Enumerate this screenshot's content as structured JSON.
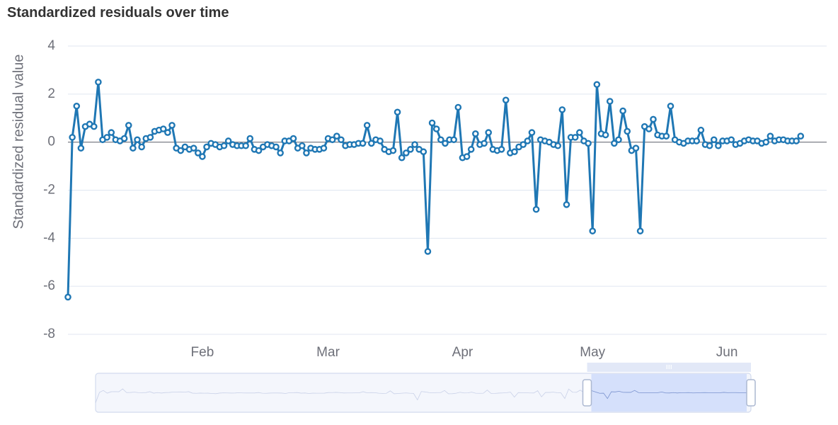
{
  "chart_data": {
    "type": "line",
    "title": "Standardized residuals over time",
    "ylabel": "Standardized residual value",
    "xlabel": "",
    "ylim": [
      -8,
      4
    ],
    "yticks": [
      4,
      2,
      0,
      -2,
      -4,
      -6,
      -8
    ],
    "x_tick_labels": [
      "Feb",
      "Mar",
      "Apr",
      "May",
      "Jun"
    ],
    "x_tick_dates": [
      "2016-02-01",
      "2016-03-01",
      "2016-04-01",
      "2016-05-01",
      "2016-06-01"
    ],
    "x_range": [
      "2016-01-01",
      "2016-06-24"
    ],
    "grid": true,
    "legend": "none",
    "series_color": "#1f77b4",
    "zero_line": true,
    "data_zoom": {
      "range_percent": [
        75,
        100
      ]
    },
    "series": [
      {
        "values": [
          -6.45,
          0.2,
          1.5,
          -0.25,
          0.65,
          0.75,
          0.65,
          2.5,
          0.1,
          0.2,
          0.4,
          0.1,
          0.05,
          0.15,
          0.7,
          -0.25,
          0.1,
          -0.2,
          0.15,
          0.2,
          0.45,
          0.5,
          0.55,
          0.4,
          0.7,
          -0.25,
          -0.35,
          -0.2,
          -0.3,
          -0.25,
          -0.45,
          -0.6,
          -0.2,
          -0.05,
          -0.1,
          -0.2,
          -0.15,
          0.05,
          -0.1,
          -0.15,
          -0.15,
          -0.15,
          0.15,
          -0.3,
          -0.35,
          -0.2,
          -0.1,
          -0.15,
          -0.2,
          -0.45,
          0.05,
          0.05,
          0.15,
          -0.25,
          -0.15,
          -0.45,
          -0.25,
          -0.3,
          -0.3,
          -0.25,
          0.15,
          0.1,
          0.25,
          0.1,
          -0.15,
          -0.1,
          -0.1,
          -0.05,
          -0.05,
          0.7,
          -0.05,
          0.1,
          0.05,
          -0.3,
          -0.4,
          -0.35,
          1.25,
          -0.65,
          -0.45,
          -0.3,
          -0.1,
          -0.3,
          -0.4,
          -4.55,
          0.8,
          0.55,
          0.1,
          -0.05,
          0.1,
          0.1,
          1.45,
          -0.65,
          -0.6,
          -0.3,
          0.35,
          -0.1,
          -0.05,
          0.4,
          -0.3,
          -0.35,
          -0.3,
          1.75,
          -0.45,
          -0.4,
          -0.2,
          -0.1,
          0.05,
          0.4,
          -2.8,
          0.1,
          0.05,
          0.0,
          -0.1,
          -0.15,
          1.35,
          -2.6,
          0.2,
          0.2,
          0.4,
          0.05,
          -0.05,
          -3.7,
          2.4,
          0.35,
          0.3,
          1.7,
          -0.05,
          0.1,
          1.3,
          0.45,
          -0.35,
          -0.25,
          -3.7,
          0.65,
          0.55,
          0.95,
          0.3,
          0.25,
          0.25,
          1.5,
          0.1,
          0.0,
          -0.05,
          0.05,
          0.05,
          0.05,
          0.5,
          -0.1,
          -0.15,
          0.1,
          -0.15,
          0.05,
          0.05,
          0.1,
          -0.1,
          -0.05,
          0.05,
          0.1,
          0.05,
          0.05,
          -0.05,
          0.0,
          0.25,
          0.05,
          0.1,
          0.1,
          0.05,
          0.05,
          0.05,
          0.25
        ]
      }
    ]
  }
}
